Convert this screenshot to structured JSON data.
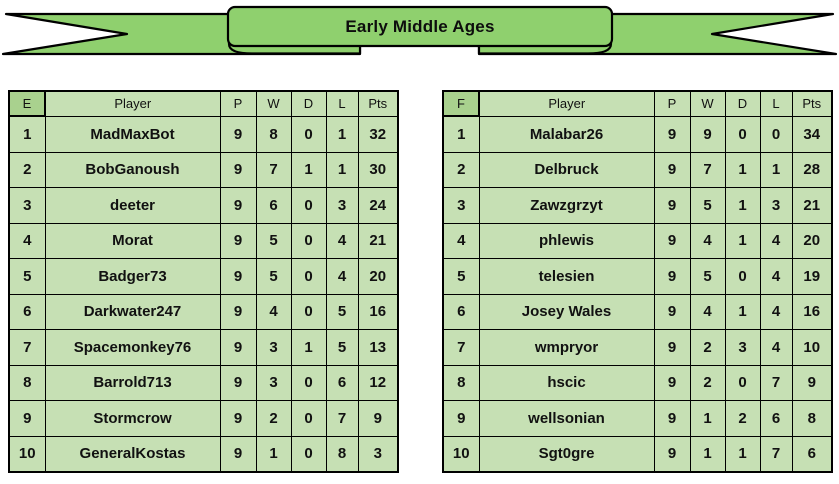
{
  "banner": {
    "title": "Early Middle Ages"
  },
  "colors": {
    "ribbon_green": "#8fd06e",
    "cell_green": "#c6e0b4",
    "dark_green": "#a9d18e",
    "pale_green": "#e2efda",
    "border_black": "#000000"
  },
  "chart_data": [
    {
      "type": "table",
      "title": "Early Middle Ages",
      "group": "E",
      "columns": [
        "E",
        "Player",
        "P",
        "W",
        "D",
        "L",
        "Pts"
      ],
      "rows": [
        {
          "rank": "1",
          "player": "MadMaxBot",
          "p": "9",
          "w": "8",
          "d": "0",
          "l": "1",
          "pts": "32",
          "highlight": "dark"
        },
        {
          "rank": "2",
          "player": "BobGanoush",
          "p": "9",
          "w": "7",
          "d": "1",
          "l": "1",
          "pts": "30",
          "highlight": ""
        },
        {
          "rank": "3",
          "player": "deeter",
          "p": "9",
          "w": "6",
          "d": "0",
          "l": "3",
          "pts": "24",
          "highlight": ""
        },
        {
          "rank": "4",
          "player": "Morat",
          "p": "9",
          "w": "5",
          "d": "0",
          "l": "4",
          "pts": "21",
          "highlight": ""
        },
        {
          "rank": "5",
          "player": "Badger73",
          "p": "9",
          "w": "5",
          "d": "0",
          "l": "4",
          "pts": "20",
          "highlight": ""
        },
        {
          "rank": "6",
          "player": "Darkwater247",
          "p": "9",
          "w": "4",
          "d": "0",
          "l": "5",
          "pts": "16",
          "highlight": ""
        },
        {
          "rank": "7",
          "player": "Spacemonkey76",
          "p": "9",
          "w": "3",
          "d": "1",
          "l": "5",
          "pts": "13",
          "highlight": ""
        },
        {
          "rank": "8",
          "player": "Barrold713",
          "p": "9",
          "w": "3",
          "d": "0",
          "l": "6",
          "pts": "12",
          "highlight": ""
        },
        {
          "rank": "9",
          "player": "Stormcrow",
          "p": "9",
          "w": "2",
          "d": "0",
          "l": "7",
          "pts": "9",
          "highlight": ""
        },
        {
          "rank": "10",
          "player": "GeneralKostas",
          "p": "9",
          "w": "1",
          "d": "0",
          "l": "8",
          "pts": "3",
          "highlight": "pale"
        }
      ]
    },
    {
      "type": "table",
      "title": "Early Middle Ages",
      "group": "F",
      "columns": [
        "F",
        "Player",
        "P",
        "W",
        "D",
        "L",
        "Pts"
      ],
      "rows": [
        {
          "rank": "1",
          "player": "Malabar26",
          "p": "9",
          "w": "9",
          "d": "0",
          "l": "0",
          "pts": "34",
          "highlight": "dark"
        },
        {
          "rank": "2",
          "player": "Delbruck",
          "p": "9",
          "w": "7",
          "d": "1",
          "l": "1",
          "pts": "28",
          "highlight": ""
        },
        {
          "rank": "3",
          "player": "Zawzgrzyt",
          "p": "9",
          "w": "5",
          "d": "1",
          "l": "3",
          "pts": "21",
          "highlight": ""
        },
        {
          "rank": "4",
          "player": "phlewis",
          "p": "9",
          "w": "4",
          "d": "1",
          "l": "4",
          "pts": "20",
          "highlight": ""
        },
        {
          "rank": "5",
          "player": "telesien",
          "p": "9",
          "w": "5",
          "d": "0",
          "l": "4",
          "pts": "19",
          "highlight": ""
        },
        {
          "rank": "6",
          "player": "Josey Wales",
          "p": "9",
          "w": "4",
          "d": "1",
          "l": "4",
          "pts": "16",
          "highlight": ""
        },
        {
          "rank": "7",
          "player": "wmpryor",
          "p": "9",
          "w": "2",
          "d": "3",
          "l": "4",
          "pts": "10",
          "highlight": ""
        },
        {
          "rank": "8",
          "player": "hscic",
          "p": "9",
          "w": "2",
          "d": "0",
          "l": "7",
          "pts": "9",
          "highlight": ""
        },
        {
          "rank": "9",
          "player": "wellsonian",
          "p": "9",
          "w": "1",
          "d": "2",
          "l": "6",
          "pts": "8",
          "highlight": ""
        },
        {
          "rank": "10",
          "player": "Sgt0gre",
          "p": "9",
          "w": "1",
          "d": "1",
          "l": "7",
          "pts": "6",
          "highlight": ""
        }
      ]
    }
  ]
}
